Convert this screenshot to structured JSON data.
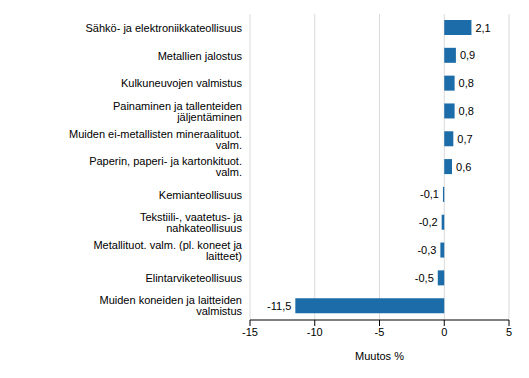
{
  "chart_data": {
    "type": "bar",
    "orientation": "horizontal",
    "categories": [
      "Sähkö- ja elektroniikkateollisuus",
      "Metallien jalostus",
      "Kulkuneuvojen valmistus",
      "Painaminen ja tallenteiden jäljentäminen",
      "Muiden ei-metallisten mineraalituot. valm.",
      "Paperin, paperi- ja kartonkituot. valm.",
      "Kemianteollisuus",
      "Tekstiili-, vaatetus- ja nahkateollisuus",
      "Metallituot. valm. (pl. koneet ja laitteet)",
      "Elintarviketeollisuus",
      "Muiden koneiden ja laitteiden valmistus"
    ],
    "values": [
      2.1,
      0.9,
      0.8,
      0.8,
      0.7,
      0.6,
      -0.1,
      -0.2,
      -0.3,
      -0.5,
      -11.5
    ],
    "value_labels": [
      "2,1",
      "0,9",
      "0,8",
      "0,8",
      "0,7",
      "0,6",
      "-0,1",
      "-0,2",
      "-0,3",
      "-0,5",
      "-11,5"
    ],
    "color": "#1b6ca8",
    "xlim": [
      -15,
      5
    ],
    "xticks": [
      -15,
      -10,
      -5,
      0,
      5
    ],
    "x_label": "Muutos %",
    "grid": true,
    "data_labels": true
  }
}
